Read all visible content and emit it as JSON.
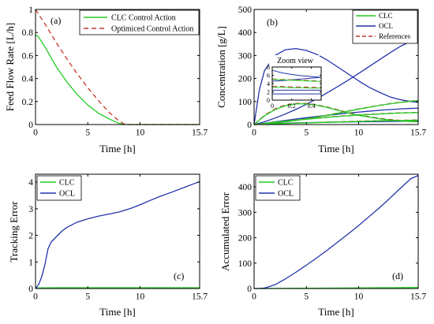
{
  "chart_data": [
    {
      "type": "line",
      "panel_label": "(a)",
      "xlabel": "Time [h]",
      "ylabel": "Feed Flow Rate [L/h]",
      "xlim": [
        0,
        15.7
      ],
      "ylim": [
        0,
        1
      ],
      "xticks": [
        0,
        5,
        10,
        15.7
      ],
      "xtick_labels": [
        "0",
        "5",
        "10",
        "15.7"
      ],
      "yticks": [
        0,
        0.2,
        0.4,
        0.6,
        0.8,
        1
      ],
      "ytick_labels": [
        "0",
        "0.2",
        "0.4",
        "0.6",
        "0.8",
        "1"
      ],
      "legend_position": "top-right",
      "series": [
        {
          "name": "CLC Control Action",
          "color": "#22cc22",
          "dash": "solid",
          "x": [
            0,
            0.3,
            1,
            2,
            3,
            4,
            5,
            6,
            7,
            8,
            8.6,
            9,
            10,
            11,
            12,
            13,
            14,
            15.7
          ],
          "y": [
            0.78,
            0.76,
            0.66,
            0.5,
            0.37,
            0.26,
            0.17,
            0.1,
            0.05,
            0.01,
            0,
            0,
            0,
            0,
            0,
            0,
            0,
            0
          ]
        },
        {
          "name": "Optimiced Control Action",
          "color": "#c0392b",
          "dash": "dashed",
          "x": [
            0,
            0.5,
            1,
            2,
            3,
            4,
            5,
            6,
            7,
            8,
            8.6,
            9,
            10,
            11,
            12,
            13,
            14,
            15.7
          ],
          "y": [
            1.0,
            0.93,
            0.86,
            0.71,
            0.57,
            0.44,
            0.32,
            0.21,
            0.11,
            0.03,
            0,
            0,
            0,
            0,
            0,
            0,
            0,
            0
          ]
        }
      ]
    },
    {
      "type": "line",
      "panel_label": "(b)",
      "xlabel": "Time [h]",
      "ylabel": "Concentration [g/L]",
      "xlim": [
        0,
        15.7
      ],
      "ylim": [
        0,
        500
      ],
      "xticks": [
        0,
        5,
        10,
        15.7
      ],
      "xtick_labels": [
        "0",
        "5",
        "10",
        "15.7"
      ],
      "yticks": [
        0,
        100,
        200,
        300,
        400,
        500
      ],
      "ytick_labels": [
        "0",
        "100",
        "200",
        "300",
        "400",
        "500"
      ],
      "legend_position": "top-right",
      "legend": [
        {
          "name": "CLC",
          "color": "#22cc22",
          "dash": "solid"
        },
        {
          "name": "OCL",
          "color": "#2233aa",
          "dash": "solid"
        },
        {
          "name": "References",
          "color": "#c0392b",
          "dash": "dashed"
        }
      ],
      "inset": {
        "title": "Zoom view",
        "xlim": [
          0,
          0.5
        ],
        "ylim": [
          0,
          8
        ],
        "xticks": [
          0,
          0.2,
          0.4
        ],
        "xtick_labels": [
          "0",
          "0.2",
          "0.4"
        ],
        "yticks": [
          0,
          2,
          4,
          6,
          8
        ],
        "ytick_labels": [
          "0",
          "2",
          "4",
          "6",
          "8"
        ],
        "series": [
          {
            "color": "#2233aa",
            "dash": "solid",
            "x": [
              0,
              0.1,
              0.2,
              0.3,
              0.4,
              0.5
            ],
            "y": [
              7.2,
              6.6,
              6.2,
              5.9,
              5.7,
              5.5
            ]
          },
          {
            "color": "#2233aa",
            "dash": "solid",
            "x": [
              0,
              0.1,
              0.2,
              0.3,
              0.4,
              0.5
            ],
            "y": [
              4.6,
              4.7,
              4.9,
              5.1,
              5.3,
              5.5
            ]
          },
          {
            "color": "#c0392b",
            "dash": "dashed",
            "x": [
              0,
              0.1,
              0.2,
              0.3,
              0.4,
              0.5
            ],
            "y": [
              5.1,
              5.0,
              4.9,
              4.8,
              4.7,
              4.6
            ]
          },
          {
            "color": "#22cc22",
            "dash": "solid",
            "x": [
              0,
              0.1,
              0.2,
              0.3,
              0.4,
              0.5
            ],
            "y": [
              5.0,
              4.9,
              4.8,
              4.7,
              4.6,
              4.5
            ]
          },
          {
            "color": "#22cc22",
            "dash": "solid",
            "x": [
              0,
              0.1,
              0.2,
              0.3,
              0.4,
              0.5
            ],
            "y": [
              3.1,
              3.1,
              3.0,
              3.0,
              2.9,
              2.9
            ]
          },
          {
            "color": "#c0392b",
            "dash": "dashed",
            "x": [
              0,
              0.1,
              0.2,
              0.3,
              0.4,
              0.5
            ],
            "y": [
              3.3,
              3.3,
              3.2,
              3.2,
              3.1,
              3.1
            ]
          },
          {
            "color": "#2233aa",
            "dash": "solid",
            "x": [
              0,
              0.1,
              0.2,
              0.3,
              0.4,
              0.5
            ],
            "y": [
              2.4,
              2.4,
              2.4,
              2.4,
              2.4,
              2.4
            ]
          },
          {
            "color": "#2233aa",
            "dash": "solid",
            "x": [
              0,
              0.1,
              0.2,
              0.3,
              0.4,
              0.5
            ],
            "y": [
              1.5,
              1.5,
              1.5,
              1.5,
              1.5,
              1.5
            ]
          }
        ]
      },
      "series": [
        {
          "color": "#2233aa",
          "dash": "solid",
          "x": [
            0,
            0.5,
            1,
            2,
            3,
            4,
            5,
            6,
            7,
            8,
            9,
            10,
            11,
            12,
            13,
            14,
            15,
            15.7
          ],
          "y": [
            0,
            150,
            235,
            300,
            325,
            330,
            322,
            305,
            280,
            250,
            220,
            190,
            162,
            140,
            120,
            108,
            100,
            97
          ]
        },
        {
          "color": "#2233aa",
          "dash": "solid",
          "x": [
            0,
            1,
            2,
            3,
            4,
            5,
            6,
            7,
            8,
            9,
            10,
            11,
            12,
            13,
            14,
            15,
            15.7
          ],
          "y": [
            0,
            12,
            28,
            46,
            66,
            88,
            112,
            138,
            165,
            193,
            222,
            252,
            282,
            312,
            340,
            362,
            375
          ]
        },
        {
          "color": "#2233aa",
          "dash": "solid",
          "x": [
            0,
            1,
            2,
            3,
            4,
            5,
            6,
            7,
            8,
            9,
            10,
            11,
            12,
            13,
            14,
            15,
            15.7
          ],
          "y": [
            0,
            5,
            12,
            18,
            24,
            30,
            35,
            40,
            45,
            50,
            54,
            58,
            62,
            65,
            68,
            70,
            71
          ]
        },
        {
          "color": "#2233aa",
          "dash": "solid",
          "x": [
            0,
            2,
            4,
            6,
            8,
            10,
            12,
            14,
            15.7
          ],
          "y": [
            0,
            4,
            7,
            9,
            11,
            12,
            13,
            14,
            15
          ]
        },
        {
          "color": "#c0392b",
          "dash": "dashed",
          "x": [
            0,
            1,
            2,
            3,
            4,
            5,
            6,
            7,
            8,
            9,
            10,
            11,
            12,
            13,
            14,
            15,
            15.7
          ],
          "y": [
            0,
            40,
            68,
            85,
            92,
            92,
            86,
            76,
            64,
            52,
            42,
            34,
            27,
            22,
            18,
            15,
            14
          ]
        },
        {
          "color": "#22cc22",
          "dash": "solid",
          "x": [
            0,
            1,
            2,
            3,
            4,
            5,
            6,
            7,
            8,
            9,
            10,
            11,
            12,
            13,
            14,
            15,
            15.7
          ],
          "y": [
            0,
            38,
            65,
            82,
            90,
            90,
            84,
            74,
            62,
            50,
            40,
            32,
            25,
            20,
            16,
            13,
            12
          ]
        },
        {
          "color": "#c0392b",
          "dash": "dashed",
          "x": [
            0,
            1,
            2,
            3,
            4,
            5,
            6,
            7,
            8,
            9,
            10,
            11,
            12,
            13,
            14,
            15,
            15.7
          ],
          "y": [
            0,
            3,
            7,
            12,
            18,
            25,
            33,
            41,
            50,
            59,
            68,
            76,
            84,
            91,
            97,
            102,
            105
          ]
        },
        {
          "color": "#22cc22",
          "dash": "solid",
          "x": [
            0,
            1,
            2,
            3,
            4,
            5,
            6,
            7,
            8,
            9,
            10,
            11,
            12,
            13,
            14,
            15,
            15.7
          ],
          "y": [
            0,
            3,
            7,
            12,
            18,
            25,
            32,
            40,
            49,
            58,
            67,
            75,
            83,
            90,
            96,
            101,
            104
          ]
        },
        {
          "color": "#c0392b",
          "dash": "dashed",
          "x": [
            0,
            2,
            4,
            6,
            8,
            10,
            12,
            14,
            15.7
          ],
          "y": [
            0,
            10,
            20,
            28,
            36,
            42,
            47,
            51,
            53
          ]
        },
        {
          "color": "#22cc22",
          "dash": "solid",
          "x": [
            0,
            2,
            4,
            6,
            8,
            10,
            12,
            14,
            15.7
          ],
          "y": [
            0,
            10,
            19,
            27,
            35,
            41,
            46,
            50,
            52
          ]
        },
        {
          "color": "#c0392b",
          "dash": "dashed",
          "x": [
            0,
            4,
            8,
            12,
            15.7
          ],
          "y": [
            0,
            6,
            12,
            17,
            20
          ]
        },
        {
          "color": "#22cc22",
          "dash": "solid",
          "x": [
            0,
            4,
            8,
            12,
            15.7
          ],
          "y": [
            0,
            6,
            11,
            16,
            19
          ]
        }
      ]
    },
    {
      "type": "line",
      "panel_label": "(c)",
      "xlabel": "Time [h]",
      "ylabel": "Tracking Error",
      "xlim": [
        0,
        15.7
      ],
      "ylim": [
        0,
        4.3
      ],
      "xticks": [
        0,
        5,
        10,
        15.7
      ],
      "xtick_labels": [
        "0",
        "5",
        "10",
        "15.7"
      ],
      "yticks": [
        0,
        1,
        2,
        3,
        4
      ],
      "ytick_labels": [
        "0",
        "1",
        "2",
        "3",
        "4"
      ],
      "legend_position": "top-left",
      "series": [
        {
          "name": "CLC",
          "color": "#22cc22",
          "dash": "solid",
          "x": [
            0,
            2,
            4,
            6,
            8,
            10,
            12,
            14,
            15.7
          ],
          "y": [
            0.02,
            0.03,
            0.03,
            0.03,
            0.03,
            0.03,
            0.03,
            0.03,
            0.03
          ]
        },
        {
          "name": "OCL",
          "color": "#2233aa",
          "dash": "solid",
          "x": [
            0,
            0.3,
            0.6,
            0.9,
            1.2,
            1.5,
            2,
            2.5,
            3,
            4,
            5,
            6,
            7,
            8,
            9,
            10,
            11,
            12,
            13,
            14,
            15,
            15.7
          ],
          "y": [
            0,
            0.15,
            0.45,
            0.9,
            1.5,
            1.75,
            1.95,
            2.15,
            2.3,
            2.5,
            2.62,
            2.72,
            2.8,
            2.88,
            3.0,
            3.15,
            3.32,
            3.48,
            3.62,
            3.77,
            3.92,
            4.02
          ]
        }
      ]
    },
    {
      "type": "line",
      "panel_label": "(d)",
      "xlabel": "Time [h]",
      "ylabel": "Accumulated Error",
      "xlim": [
        0,
        15.7
      ],
      "ylim": [
        0,
        450
      ],
      "xticks": [
        0,
        5,
        10,
        15.7
      ],
      "xtick_labels": [
        "0",
        "5",
        "10",
        "15.7"
      ],
      "yticks": [
        0,
        100,
        200,
        300,
        400
      ],
      "ytick_labels": [
        "0",
        "100",
        "200",
        "300",
        "400"
      ],
      "legend_position": "top-left",
      "series": [
        {
          "name": "CLC",
          "color": "#22cc22",
          "dash": "solid",
          "x": [
            0,
            4,
            8,
            12,
            15.7
          ],
          "y": [
            0,
            1,
            2,
            3,
            4
          ]
        },
        {
          "name": "OCL",
          "color": "#2233aa",
          "dash": "solid",
          "x": [
            0,
            0.5,
            1,
            1.5,
            2,
            3,
            4,
            5,
            6,
            7,
            8,
            9,
            10,
            11,
            12,
            13,
            14,
            15,
            15.7
          ],
          "y": [
            0,
            0.5,
            2,
            8,
            15,
            38,
            64,
            92,
            121,
            151,
            183,
            215,
            248,
            283,
            318,
            356,
            395,
            433,
            445
          ]
        }
      ]
    }
  ]
}
